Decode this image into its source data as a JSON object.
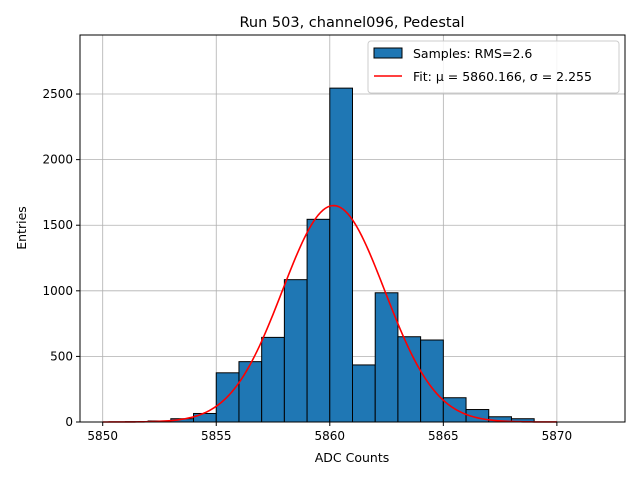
{
  "chart_data": {
    "type": "bar",
    "title": "Run 503, channel096, Pedestal",
    "xlabel": "ADC Counts",
    "ylabel": "Entries",
    "xlim": [
      5849,
      5873
    ],
    "ylim": [
      0,
      2950
    ],
    "xticks": [
      5850,
      5855,
      5860,
      5865,
      5870
    ],
    "yticks": [
      0,
      500,
      1000,
      1500,
      2000,
      2500
    ],
    "grid": true,
    "legend_position": "top-right",
    "bar_color": "#1f77b4",
    "fit_color": "#ff0000",
    "histogram": {
      "name": "Samples: RMS=2.6",
      "bin_width": 1,
      "bin_edges_start": [
        5851,
        5852,
        5853,
        5854,
        5855,
        5856,
        5857,
        5858,
        5859,
        5860,
        5861,
        5862,
        5863,
        5864,
        5865,
        5866,
        5867,
        5868
      ],
      "values": [
        2,
        8,
        25,
        65,
        375,
        460,
        645,
        1085,
        1545,
        2545,
        435,
        985,
        650,
        625,
        185,
        95,
        40,
        25
      ]
    },
    "fit": {
      "name": "Fit: μ = 5860.166, σ = 2.255",
      "mu": 5860.166,
      "sigma": 2.255,
      "amplitude": 1650,
      "x_range": [
        5850,
        5870
      ]
    }
  }
}
